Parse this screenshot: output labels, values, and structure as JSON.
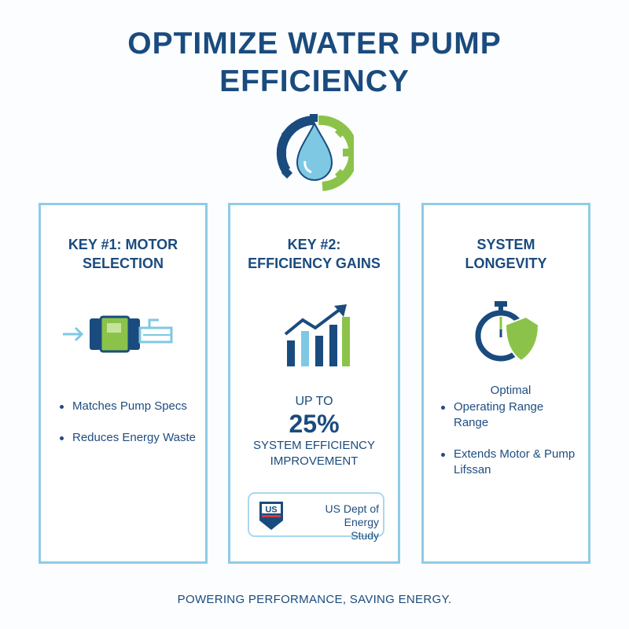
{
  "title": {
    "line1": "OPTIMIZE WATER PUMP",
    "line2": "EFFICIENCY"
  },
  "hero_icon": "water-drop-gear-icon",
  "colors": {
    "navy": "#1a4b7e",
    "border": "#8fcbe6",
    "green": "#8bc34a",
    "light_blue": "#7ec8e3"
  },
  "cards": [
    {
      "title1": "KEY #1: MOTOR",
      "title2": "SELECTION",
      "icon": "motor-pump-icon",
      "bullets": [
        "Matches Pump Specs",
        "Reduces Energy Waste"
      ]
    },
    {
      "title1": "KEY #2:",
      "title2": "EFFICIENCY GAINS",
      "icon": "bar-chart-growth-icon",
      "stat": {
        "prefix": "UP TO",
        "value": "25%",
        "label1": "SYSTEM EFFICIENCY",
        "label2": "IMPROVEMENT"
      },
      "source": {
        "logo": "US",
        "text1": "US Dept of Energy",
        "text2": "Study"
      }
    },
    {
      "title1": "SYSTEM",
      "title2": "LONGEVITY",
      "icon": "stopwatch-shield-icon",
      "intro": "Optimal",
      "bullets": [
        "Operating Range Range",
        "Extends Motor & Pump Lifssan"
      ]
    }
  ],
  "footer": "POWERING PERFORMANCE, SAVING ENERGY."
}
